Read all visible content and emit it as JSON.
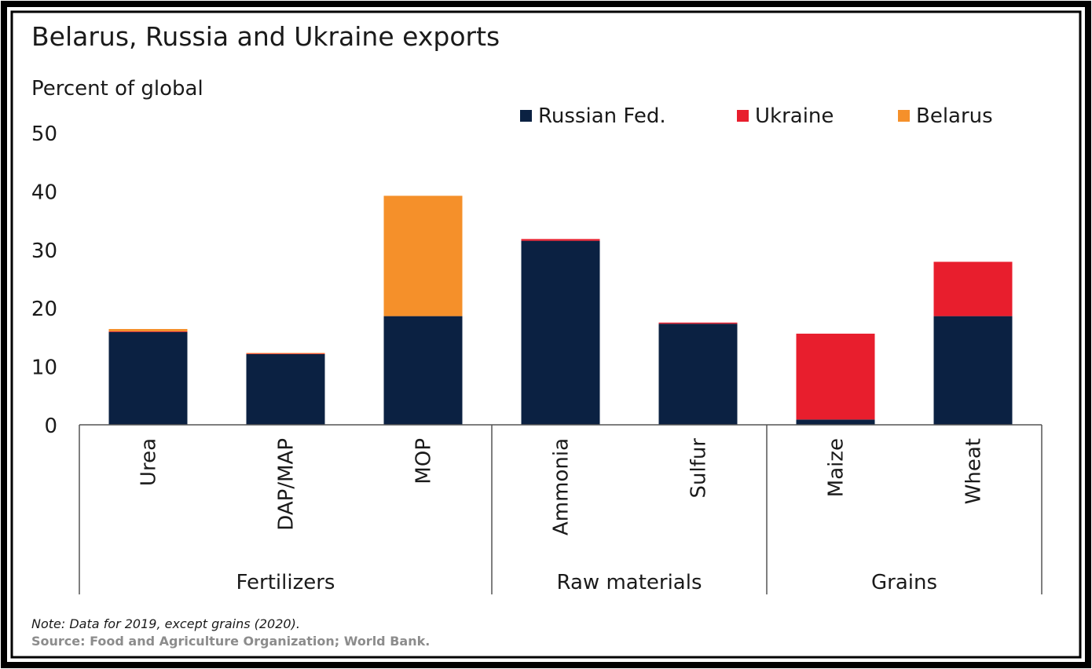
{
  "chart_data": {
    "type": "bar",
    "stacked": true,
    "title": "Belarus, Russia and Ukraine exports",
    "ylabel": "Percent of global",
    "xlabel": "",
    "ylim": [
      0,
      50
    ],
    "yticks": [
      "0",
      "10",
      "20",
      "30",
      "40",
      "50"
    ],
    "legend_position": "top-right",
    "categories": [
      "Urea",
      "DAP/MAP",
      "MOP",
      "Ammonia",
      "Sulfur",
      "Maize",
      "Wheat"
    ],
    "groups": [
      {
        "label": "Fertilizers",
        "categories": [
          "Urea",
          "DAP/MAP",
          "MOP"
        ]
      },
      {
        "label": "Raw materials",
        "categories": [
          "Ammonia",
          "Sulfur"
        ]
      },
      {
        "label": "Grains",
        "categories": [
          "Maize",
          "Wheat"
        ]
      }
    ],
    "series": [
      {
        "name": "Russian Fed.",
        "color": "#0b2142",
        "values": [
          15.9,
          12.1,
          18.6,
          31.5,
          17.3,
          0.9,
          18.6
        ]
      },
      {
        "name": "Ukraine",
        "color": "#e81e2d",
        "values": [
          0.1,
          0.1,
          0.0,
          0.3,
          0.2,
          14.7,
          9.3
        ]
      },
      {
        "name": "Belarus",
        "color": "#f5902a",
        "values": [
          0.4,
          0.1,
          20.6,
          0.0,
          0.0,
          0.0,
          0.0
        ]
      }
    ],
    "grid": false,
    "note": "Note: Data for 2019, except grains (2020).",
    "source": "Source: Food and Agriculture Organization; World Bank."
  }
}
